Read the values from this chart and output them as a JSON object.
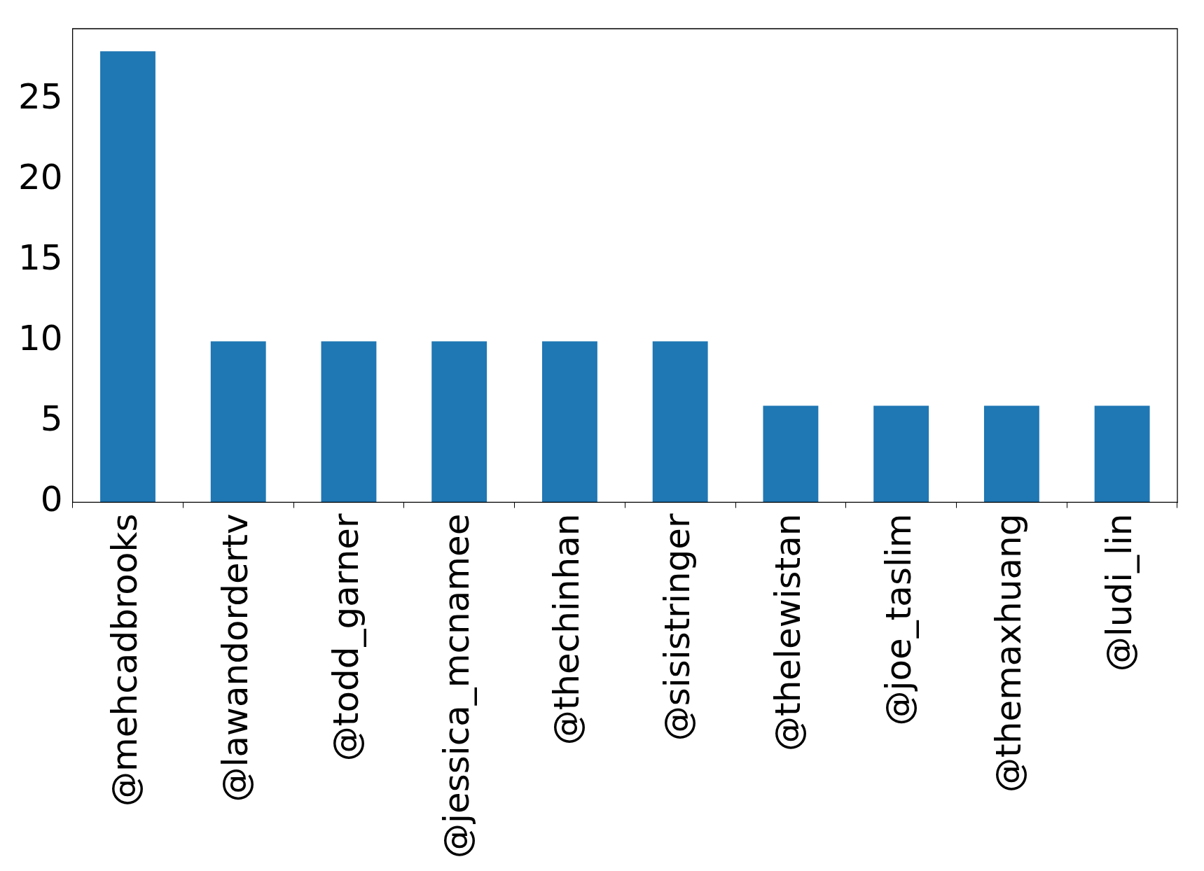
{
  "chart_data": {
    "type": "bar",
    "categories": [
      "@mehcadbrooks",
      "@lawandordertv",
      "@todd_garner",
      "@jessica_mcnamee",
      "@thechinhan",
      "@sisistringer",
      "@thelewistan",
      "@joe_taslim",
      "@themaxhuang",
      "@ludi_lin"
    ],
    "values": [
      28,
      10,
      10,
      10,
      10,
      10,
      6,
      6,
      6,
      6
    ],
    "color": "#1f77b4",
    "ylim": [
      0,
      29.4
    ],
    "yticks": [
      0,
      5,
      10,
      15,
      20,
      25
    ],
    "grid": false,
    "legend": false
  }
}
